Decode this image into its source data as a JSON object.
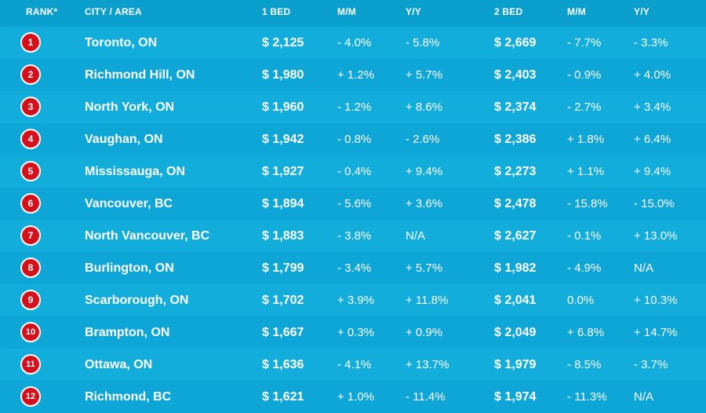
{
  "chart_data": {
    "type": "table",
    "columns": [
      "RANK*",
      "CITY / AREA",
      "1 BED",
      "M/M",
      "Y/Y",
      "2 BED",
      "M/M",
      "Y/Y"
    ],
    "rows": [
      {
        "rank": "1",
        "city": "Toronto, ON",
        "bed1": "$ 2,125",
        "mm1": "- 4.0%",
        "yy1": "- 5.8%",
        "bed2": "$ 2,669",
        "mm2": "- 7.7%",
        "yy2": "- 3.3%"
      },
      {
        "rank": "2",
        "city": "Richmond Hill, ON",
        "bed1": "$ 1,980",
        "mm1": "+ 1.2%",
        "yy1": "+ 5.7%",
        "bed2": "$ 2,403",
        "mm2": "- 0.9%",
        "yy2": "+ 4.0%"
      },
      {
        "rank": "3",
        "city": "North York, ON",
        "bed1": "$ 1,960",
        "mm1": "- 1.2%",
        "yy1": "+ 8.6%",
        "bed2": "$ 2,374",
        "mm2": "- 2.7%",
        "yy2": "+ 3.4%"
      },
      {
        "rank": "4",
        "city": "Vaughan, ON",
        "bed1": "$ 1,942",
        "mm1": "- 0.8%",
        "yy1": "- 2.6%",
        "bed2": "$ 2,386",
        "mm2": "+ 1.8%",
        "yy2": "+ 6.4%"
      },
      {
        "rank": "5",
        "city": "Mississauga, ON",
        "bed1": "$ 1,927",
        "mm1": "- 0.4%",
        "yy1": "+ 9.4%",
        "bed2": "$ 2,273",
        "mm2": "+ 1.1%",
        "yy2": "+ 9.4%"
      },
      {
        "rank": "6",
        "city": "Vancouver, BC",
        "bed1": "$ 1,894",
        "mm1": "- 5.6%",
        "yy1": "+ 3.6%",
        "bed2": "$ 2,478",
        "mm2": "- 15.8%",
        "yy2": "- 15.0%"
      },
      {
        "rank": "7",
        "city": "North Vancouver, BC",
        "bed1": "$ 1,883",
        "mm1": "- 3.8%",
        "yy1": "N/A",
        "bed2": "$ 2,627",
        "mm2": "- 0.1%",
        "yy2": "+ 13.0%"
      },
      {
        "rank": "8",
        "city": "Burlington, ON",
        "bed1": "$ 1,799",
        "mm1": "- 3.4%",
        "yy1": "+ 5.7%",
        "bed2": "$ 1,982",
        "mm2": "- 4.9%",
        "yy2": "N/A"
      },
      {
        "rank": "9",
        "city": "Scarborough, ON",
        "bed1": "$ 1,702",
        "mm1": "+ 3.9%",
        "yy1": "+ 11.8%",
        "bed2": "$ 2,041",
        "mm2": "0.0%",
        "yy2": "+ 10.3%"
      },
      {
        "rank": "10",
        "city": "Brampton, ON",
        "bed1": "$ 1,667",
        "mm1": "+ 0.3%",
        "yy1": "+ 0.9%",
        "bed2": "$ 2,049",
        "mm2": "+ 6.8%",
        "yy2": "+ 14.7%"
      },
      {
        "rank": "11",
        "city": "Ottawa, ON",
        "bed1": "$ 1,636",
        "mm1": "- 4.1%",
        "yy1": "+ 13.7%",
        "bed2": "$ 1,979",
        "mm2": "- 8.5%",
        "yy2": "- 3.7%"
      },
      {
        "rank": "12",
        "city": "Richmond, BC",
        "bed1": "$ 1,621",
        "mm1": "+ 1.0%",
        "yy1": "- 11.4%",
        "bed2": "$ 1,974",
        "mm2": "- 11.3%",
        "yy2": "N/A"
      }
    ]
  },
  "colors": {
    "background": "#0aa3d2",
    "row_light": "#12addb",
    "row_dark": "#0ea6d6",
    "badge": "#d3101b",
    "text": "#ffffff"
  }
}
